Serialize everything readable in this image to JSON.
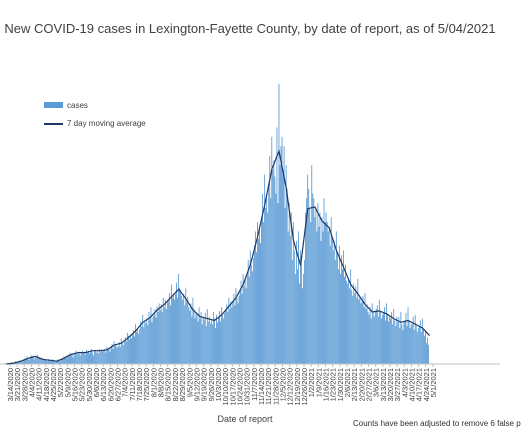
{
  "chart_data": {
    "type": "bar",
    "title": "New COVID-19 cases in Lexington-Fayette County, by date of report, as of 5/04/2021",
    "xlabel": "Date of report",
    "ylabel": "",
    "ylim": [
      0,
      300
    ],
    "footnote": "Counts have been adjusted to remove 6 false p",
    "legend_position": "upper-left",
    "grid": false,
    "colors": {
      "bars": "#5b9bd5",
      "average_line": "#1f3864"
    },
    "series": [
      {
        "name": "cases",
        "kind": "bar"
      },
      {
        "name": "7 day moving average",
        "kind": "line"
      }
    ],
    "x_ticks": [
      "3/14/2020",
      "3/21/2020",
      "3/28/2020",
      "4/4/2020",
      "4/11/2020",
      "4/18/2020",
      "4/25/2020",
      "5/2/2020",
      "5/9/2020",
      "5/16/2020",
      "5/23/2020",
      "5/30/2020",
      "6/6/2020",
      "6/13/2020",
      "6/20/2020",
      "6/27/2020",
      "7/4/2020",
      "7/11/2020",
      "7/18/2020",
      "7/25/2020",
      "8/1/2020",
      "8/8/2020",
      "8/15/2020",
      "8/22/2020",
      "8/29/2020",
      "9/5/2020",
      "9/12/2020",
      "9/19/2020",
      "9/26/2020",
      "10/3/2020",
      "10/10/2020",
      "10/17/2020",
      "10/24/2020",
      "10/31/2020",
      "11/7/2020",
      "11/14/2020",
      "11/21/2020",
      "11/28/2020",
      "12/5/2020",
      "12/12/2020",
      "12/19/2020",
      "12/26/2020",
      "1/2/2021",
      "1/9/2021",
      "1/16/2021",
      "1/23/2021",
      "1/30/2021",
      "2/6/2021",
      "2/13/2021",
      "2/20/2021",
      "2/27/2021",
      "3/6/2021",
      "3/13/2021",
      "3/20/2021",
      "3/27/2021",
      "4/3/2021",
      "4/10/2021",
      "4/17/2021",
      "4/24/2021",
      "5/1/2021"
    ],
    "weekly_cases": [
      [
        0,
        0,
        1,
        0,
        1,
        1,
        0
      ],
      [
        1,
        2,
        1,
        1,
        2,
        3,
        2
      ],
      [
        2,
        3,
        4,
        3,
        2,
        4,
        5
      ],
      [
        6,
        5,
        8,
        6,
        4,
        7,
        9
      ],
      [
        9,
        7,
        5,
        8,
        6,
        10,
        8
      ],
      [
        6,
        5,
        7,
        4,
        6,
        5,
        4
      ],
      [
        4,
        3,
        5,
        4,
        3,
        4,
        5
      ],
      [
        3,
        4,
        2,
        3,
        5,
        4,
        3
      ],
      [
        4,
        6,
        5,
        8,
        7,
        9,
        6
      ],
      [
        10,
        8,
        12,
        9,
        11,
        7,
        10
      ],
      [
        12,
        14,
        10,
        13,
        11,
        9,
        12
      ],
      [
        14,
        11,
        13,
        10,
        15,
        12,
        14
      ],
      [
        11,
        13,
        16,
        12,
        9,
        14,
        15
      ],
      [
        12,
        14,
        11,
        16,
        13,
        15,
        14
      ],
      [
        14,
        16,
        12,
        18,
        15,
        17,
        13
      ],
      [
        18,
        21,
        16,
        24,
        19,
        20,
        17
      ],
      [
        19,
        23,
        18,
        27,
        22,
        20,
        25
      ],
      [
        28,
        24,
        33,
        30,
        26,
        29,
        27
      ],
      [
        31,
        36,
        29,
        42,
        34,
        38,
        32
      ],
      [
        37,
        45,
        40,
        52,
        39,
        46,
        43
      ],
      [
        48,
        41,
        55,
        47,
        60,
        44,
        50
      ],
      [
        52,
        58,
        49,
        61,
        55,
        64,
        57
      ],
      [
        63,
        55,
        70,
        60,
        68,
        58,
        66
      ],
      [
        66,
        75,
        62,
        84,
        70,
        72,
        68
      ],
      [
        74,
        86,
        70,
        95,
        80,
        78,
        72
      ],
      [
        68,
        74,
        62,
        80,
        66,
        71,
        60
      ],
      [
        56,
        64,
        50,
        70,
        58,
        48,
        55
      ],
      [
        52,
        45,
        60,
        48,
        55,
        42,
        50
      ],
      [
        47,
        54,
        40,
        58,
        45,
        50,
        43
      ],
      [
        46,
        42,
        55,
        48,
        38,
        52,
        44
      ],
      [
        49,
        56,
        45,
        60,
        52,
        48,
        54
      ],
      [
        57,
        63,
        55,
        70,
        58,
        66,
        60
      ],
      [
        66,
        74,
        62,
        80,
        70,
        64,
        72
      ],
      [
        78,
        88,
        74,
        95,
        82,
        90,
        80
      ],
      [
        96,
        110,
        92,
        120,
        105,
        98,
        112
      ],
      [
        125,
        140,
        118,
        150,
        132,
        145,
        128
      ],
      [
        155,
        180,
        150,
        200,
        165,
        175,
        160
      ],
      [
        190,
        220,
        175,
        240,
        205,
        215,
        198
      ],
      [
        180,
        250,
        170,
        296,
        210,
        230,
        240
      ],
      [
        200,
        230,
        165,
        210,
        185,
        140,
        170
      ],
      [
        135,
        160,
        110,
        150,
        120,
        95,
        130
      ],
      [
        100,
        140,
        85,
        120,
        105,
        80,
        95
      ],
      [
        110,
        160,
        175,
        200,
        185,
        165,
        150
      ],
      [
        210,
        180,
        175,
        155,
        165,
        140,
        170
      ],
      [
        145,
        160,
        130,
        155,
        140,
        175,
        150
      ],
      [
        160,
        150,
        140,
        145,
        125,
        155,
        135
      ],
      [
        120,
        130,
        110,
        140,
        118,
        100,
        125
      ],
      [
        95,
        115,
        100,
        120,
        92,
        105,
        88
      ],
      [
        85,
        90,
        80,
        100,
        78,
        72,
        85
      ],
      [
        75,
        82,
        70,
        90,
        68,
        72,
        64
      ],
      [
        66,
        72,
        60,
        75,
        58,
        63,
        55
      ],
      [
        52,
        60,
        48,
        64,
        55,
        50,
        56
      ],
      [
        58,
        62,
        50,
        68,
        55,
        48,
        52
      ],
      [
        54,
        60,
        46,
        64,
        52,
        45,
        50
      ],
      [
        48,
        55,
        42,
        58,
        46,
        40,
        50
      ],
      [
        44,
        50,
        38,
        55,
        42,
        36,
        44
      ],
      [
        46,
        54,
        40,
        60,
        45,
        38,
        42
      ],
      [
        42,
        50,
        36,
        52,
        40,
        34,
        38
      ],
      [
        40,
        46,
        34,
        48,
        36,
        30,
        35
      ],
      [
        22,
        28,
        20
      ]
    ],
    "moving_average_weekly": [
      0,
      1,
      3,
      6,
      8,
      5,
      4,
      3,
      6,
      10,
      12,
      12,
      14,
      14,
      15,
      20,
      22,
      28,
      35,
      44,
      49,
      57,
      63,
      71,
      79,
      69,
      57,
      50,
      48,
      46,
      52,
      61,
      70,
      84,
      105,
      134,
      168,
      206,
      225,
      186,
      131,
      104,
      164,
      166,
      151,
      144,
      120,
      102,
      84,
      74,
      63,
      55,
      56,
      53,
      48,
      44,
      46,
      42,
      38,
      30
    ]
  }
}
